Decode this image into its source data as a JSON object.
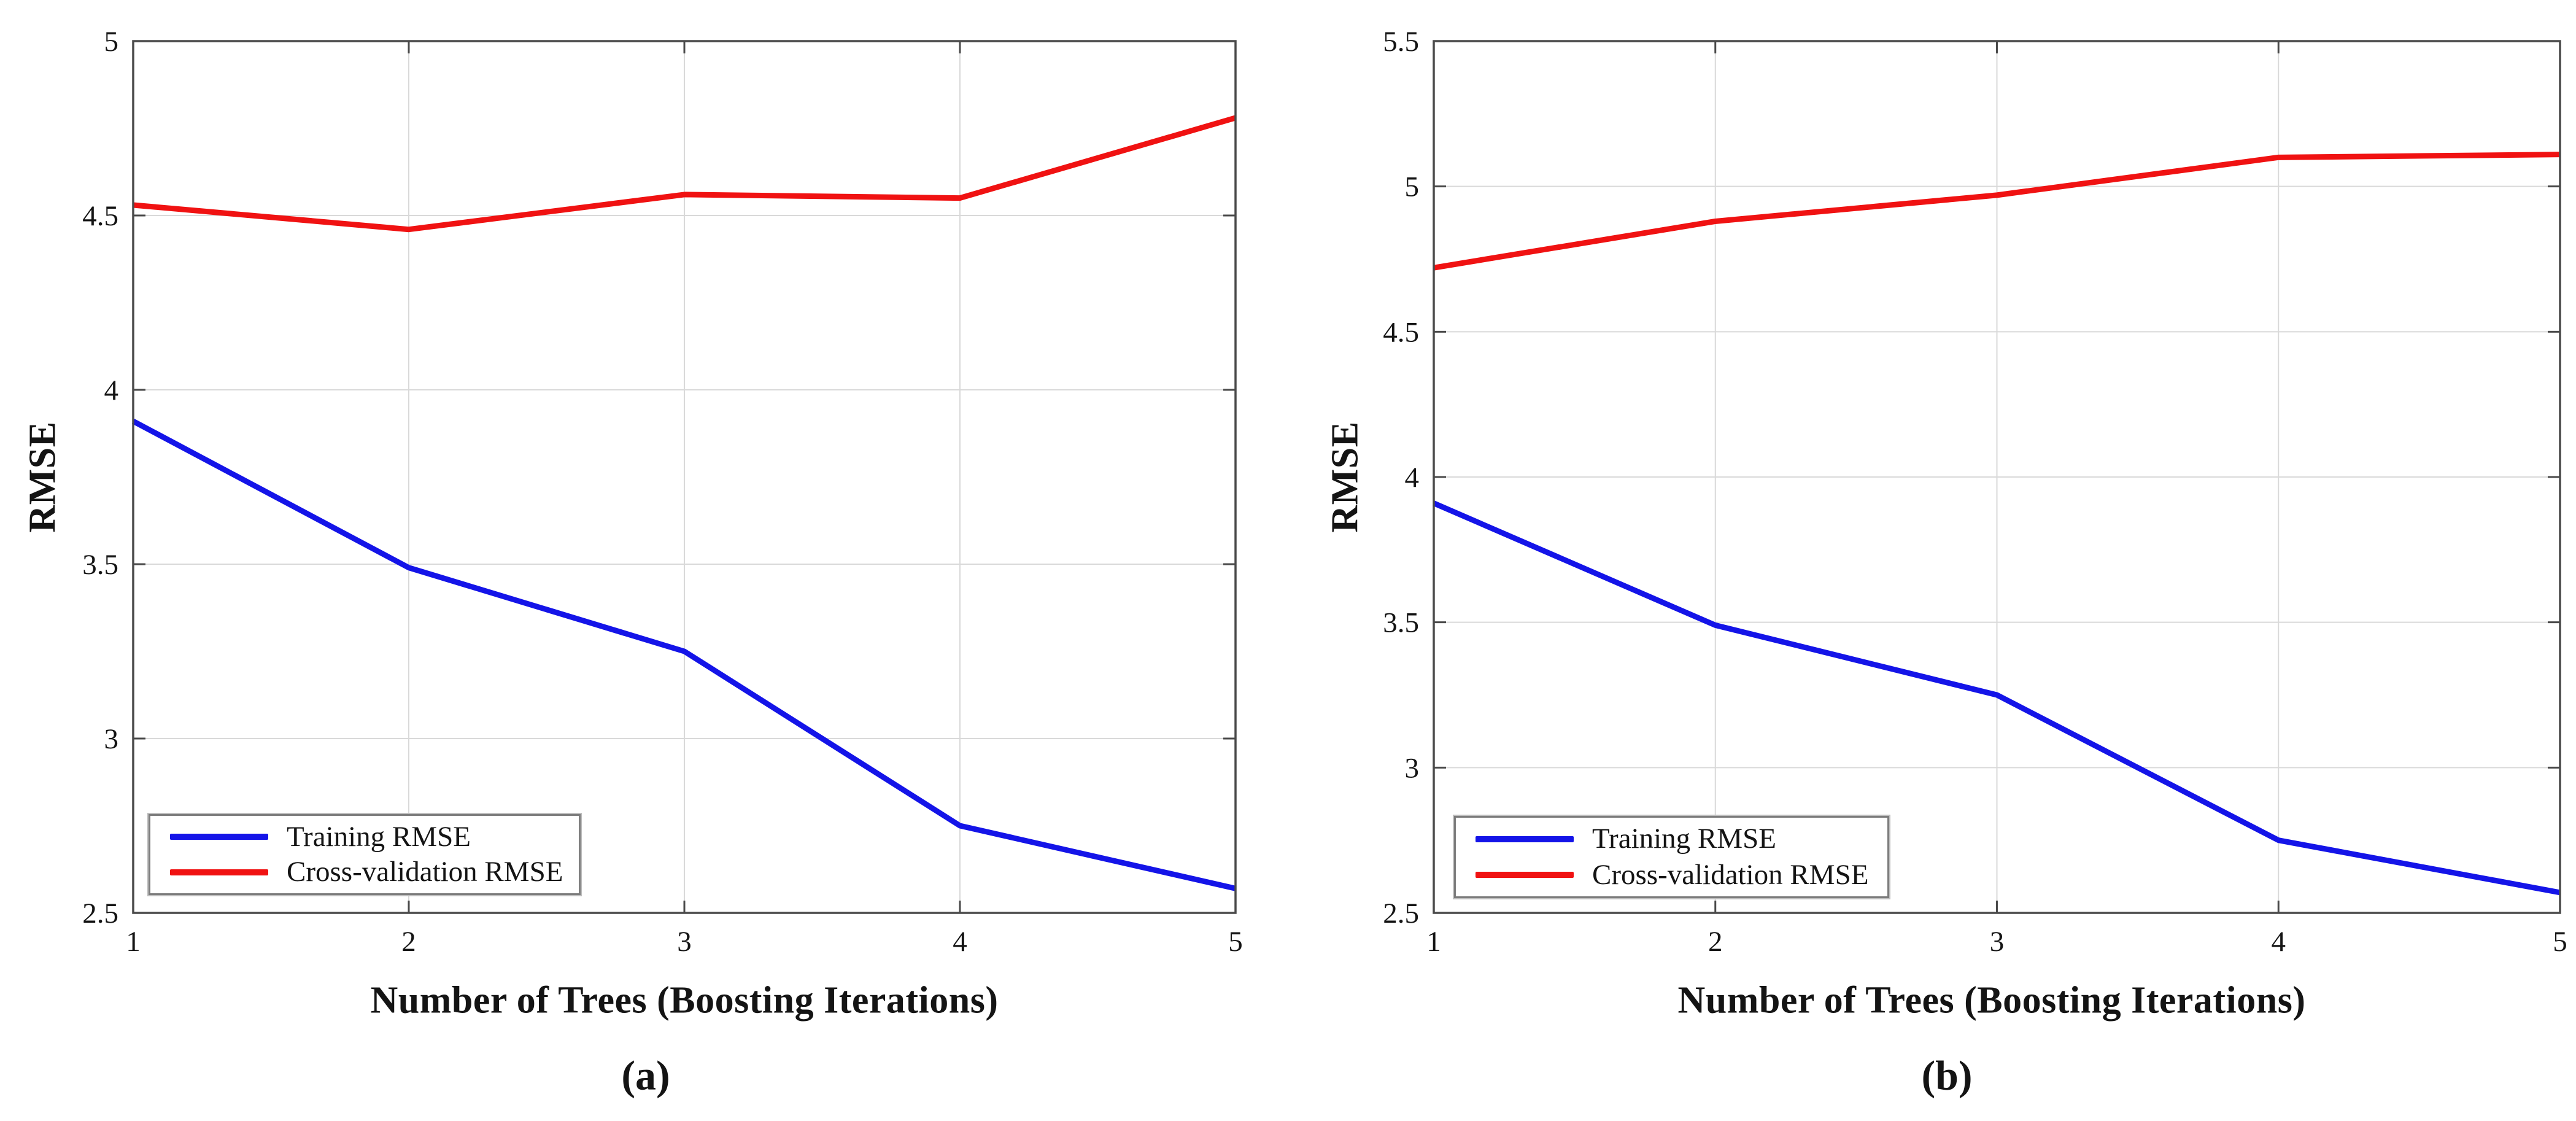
{
  "figure": {
    "background": "#ffffff",
    "text_color": "#141414",
    "grid_color": "#d9d9d9",
    "axis_color": "#4a4a4a"
  },
  "chart_data": [
    {
      "type": "line",
      "panel": "a",
      "caption": "(a)",
      "title": "",
      "xlabel": "Number of Trees (Boosting Iterations)",
      "ylabel": "RMSE",
      "x": [
        1,
        2,
        3,
        4,
        5
      ],
      "xlim": [
        1,
        5
      ],
      "ylim": [
        2.5,
        5
      ],
      "xticks": [
        1,
        2,
        3,
        4,
        5
      ],
      "yticks": [
        2.5,
        3,
        3.5,
        4,
        4.5,
        5
      ],
      "grid": true,
      "legend_position": "lower-left",
      "series": [
        {
          "name": "Training RMSE",
          "color": "#1414e8",
          "values": [
            3.91,
            3.49,
            3.25,
            2.75,
            2.57
          ]
        },
        {
          "name": "Cross-validation RMSE",
          "color": "#f01212",
          "values": [
            4.53,
            4.46,
            4.56,
            4.55,
            4.78
          ]
        }
      ]
    },
    {
      "type": "line",
      "panel": "b",
      "caption": "(b)",
      "title": "",
      "xlabel": "Number of Trees (Boosting Iterations)",
      "ylabel": "RMSE",
      "x": [
        1,
        2,
        3,
        4,
        5
      ],
      "xlim": [
        1,
        5
      ],
      "ylim": [
        2.5,
        5.5
      ],
      "xticks": [
        1,
        2,
        3,
        4,
        5
      ],
      "yticks": [
        2.5,
        3,
        3.5,
        4,
        4.5,
        5,
        5.5
      ],
      "grid": true,
      "legend_position": "lower-left",
      "series": [
        {
          "name": "Training RMSE",
          "color": "#1414e8",
          "values": [
            3.91,
            3.49,
            3.25,
            2.75,
            2.57
          ]
        },
        {
          "name": "Cross-validation RMSE",
          "color": "#f01212",
          "values": [
            4.72,
            4.88,
            4.97,
            5.1,
            5.11
          ]
        }
      ]
    }
  ]
}
